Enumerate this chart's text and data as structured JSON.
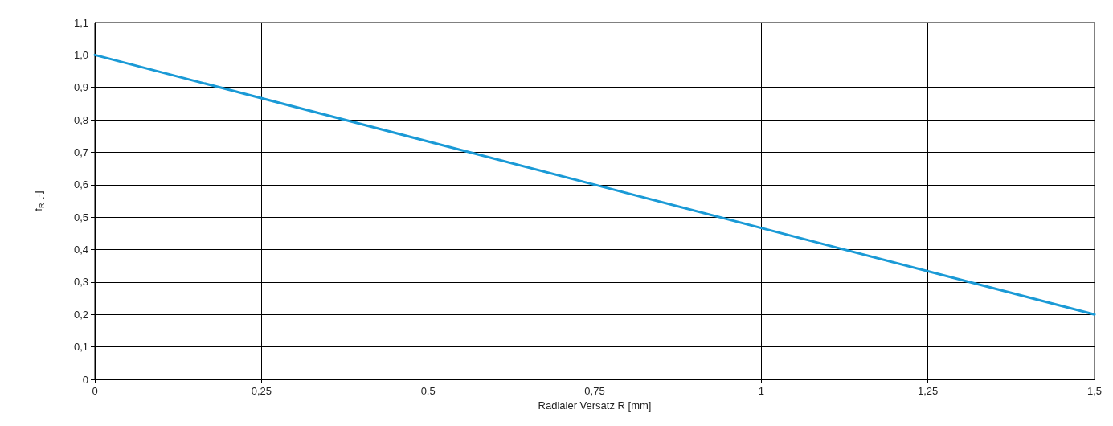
{
  "chart_data": {
    "type": "line",
    "xlabel": "Radialer Versatz R [mm]",
    "ylabel": "f$_{R}$ [-]",
    "x": [
      0,
      1.5
    ],
    "series": [
      {
        "color": "#1a9ad6",
        "values": [
          1.0,
          0.2
        ]
      }
    ],
    "xlim": [
      0,
      1.5
    ],
    "xticks": [
      0,
      {
        "value": 0.25,
        "label": "0,25"
      },
      {
        "value": 0.5,
        "label": "0,5"
      },
      {
        "value": 0.75,
        "label": "0,75"
      },
      1,
      {
        "value": 1.25,
        "label": "1,25"
      },
      {
        "value": 1.5,
        "label": "1,5"
      }
    ],
    "ylim": [
      0,
      1.1
    ],
    "yticks": [
      0,
      {
        "value": 0.1,
        "label": "0,1"
      },
      {
        "value": 0.2,
        "label": "0,2"
      },
      {
        "value": 0.3,
        "label": "0,3"
      },
      {
        "value": 0.4,
        "label": "0,4"
      },
      {
        "value": 0.5,
        "label": "0,5"
      },
      {
        "value": 0.6,
        "label": "0,6"
      },
      {
        "value": 0.7,
        "label": "0,7"
      },
      {
        "value": 0.8,
        "label": "0,8"
      },
      {
        "value": 0.9,
        "label": "0,9"
      },
      {
        "value": 1.0,
        "label": "1,0"
      },
      {
        "value": 1.1,
        "label": "1,1"
      }
    ],
    "grid": true,
    "marker": "none",
    "line_style": "solid"
  }
}
